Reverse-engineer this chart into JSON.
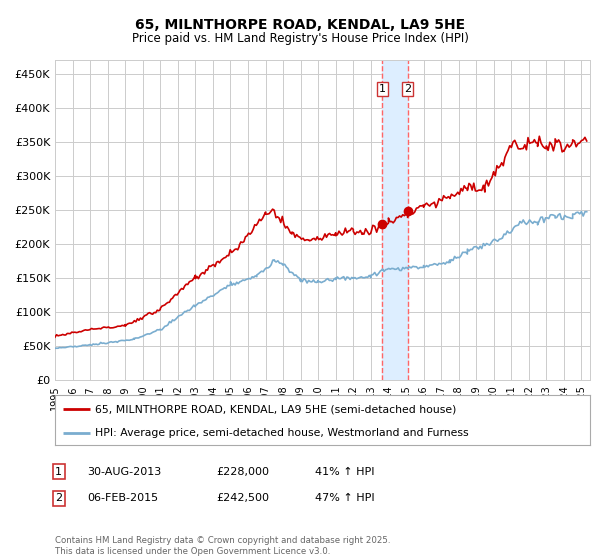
{
  "title": "65, MILNTHORPE ROAD, KENDAL, LA9 5HE",
  "subtitle": "Price paid vs. HM Land Registry's House Price Index (HPI)",
  "red_label": "65, MILNTHORPE ROAD, KENDAL, LA9 5HE (semi-detached house)",
  "blue_label": "HPI: Average price, semi-detached house, Westmorland and Furness",
  "footer": "Contains HM Land Registry data © Crown copyright and database right 2025.\nThis data is licensed under the Open Government Licence v3.0.",
  "transactions": [
    {
      "num": 1,
      "date": "30-AUG-2013",
      "price": 228000,
      "hpi_pct": "41% ↑ HPI"
    },
    {
      "num": 2,
      "date": "06-FEB-2015",
      "price": 242500,
      "hpi_pct": "47% ↑ HPI"
    }
  ],
  "transaction_dates_decimal": [
    2013.66,
    2015.09
  ],
  "ylim": [
    0,
    470000
  ],
  "yticks": [
    0,
    50000,
    100000,
    150000,
    200000,
    250000,
    300000,
    350000,
    400000,
    450000
  ],
  "background_color": "#ffffff",
  "grid_color": "#cccccc",
  "red_color": "#cc0000",
  "blue_color": "#7aadcf",
  "highlight_fill": "#ddeeff",
  "dashed_line_color": "#ff6666"
}
